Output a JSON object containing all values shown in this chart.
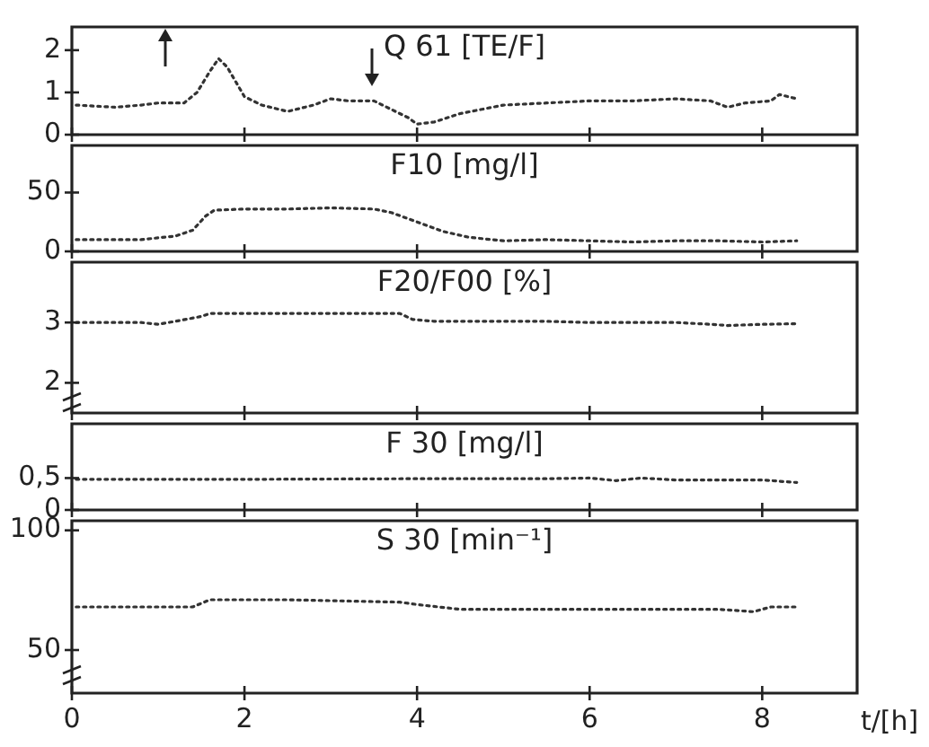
{
  "chart_data": [
    {
      "type": "line",
      "title": "Q 61 [TE/F]",
      "xlim": [
        0,
        9.1
      ],
      "xticks": [
        0,
        2,
        4,
        6,
        8
      ],
      "ylim": [
        0,
        2.55
      ],
      "yticks": [
        0,
        1,
        2
      ],
      "tick_labels": "y",
      "grid": false,
      "line_style": "dotted",
      "series": [
        {
          "color": "#333333",
          "x": [
            0.05,
            0.5,
            0.8,
            1.0,
            1.3,
            1.45,
            1.6,
            1.7,
            1.8,
            2.0,
            2.2,
            2.5,
            2.8,
            3.0,
            3.2,
            3.5,
            3.7,
            3.9,
            4.0,
            4.2,
            4.5,
            5.0,
            5.5,
            6.0,
            6.5,
            7.0,
            7.4,
            7.6,
            7.8,
            8.1,
            8.2,
            8.4
          ],
          "values": [
            0.7,
            0.65,
            0.7,
            0.75,
            0.75,
            1.0,
            1.5,
            1.8,
            1.6,
            0.9,
            0.7,
            0.55,
            0.7,
            0.85,
            0.8,
            0.8,
            0.6,
            0.4,
            0.25,
            0.3,
            0.5,
            0.7,
            0.75,
            0.8,
            0.8,
            0.85,
            0.8,
            0.65,
            0.75,
            0.8,
            0.95,
            0.85
          ]
        }
      ]
    },
    {
      "type": "line",
      "title": "F10 [mg/l]",
      "xlim": [
        0,
        9.1
      ],
      "xticks": [
        0,
        2,
        4,
        6,
        8
      ],
      "ylim": [
        0,
        90
      ],
      "yticks": [
        0,
        50
      ],
      "tick_labels": "y",
      "grid": false,
      "line_style": "dotted",
      "series": [
        {
          "color": "#333333",
          "x": [
            0.05,
            0.8,
            1.2,
            1.4,
            1.55,
            1.65,
            2.0,
            2.5,
            3.0,
            3.5,
            3.7,
            4.0,
            4.3,
            4.6,
            5.0,
            5.5,
            6.0,
            6.5,
            7.0,
            7.5,
            8.0,
            8.4
          ],
          "values": [
            10,
            10,
            13,
            18,
            30,
            35,
            36,
            36,
            37,
            36,
            33,
            25,
            17,
            12,
            9,
            10,
            9,
            8,
            9,
            9,
            8,
            9
          ]
        }
      ]
    },
    {
      "type": "line",
      "title": "F20/F00 [%]",
      "xlim": [
        0,
        9.1
      ],
      "xticks": [
        0,
        2,
        4,
        6,
        8
      ],
      "ylim": [
        1.5,
        4
      ],
      "yticks": [
        2,
        3
      ],
      "tick_labels": "y",
      "grid": false,
      "line_style": "dotted",
      "series": [
        {
          "color": "#333333",
          "x": [
            0.05,
            0.8,
            1.0,
            1.2,
            1.5,
            1.6,
            2.5,
            3.5,
            3.8,
            3.95,
            4.2,
            5.0,
            5.5,
            6.0,
            7.0,
            7.4,
            7.6,
            8.0,
            8.4
          ],
          "values": [
            3.0,
            3.0,
            2.97,
            3.02,
            3.1,
            3.15,
            3.15,
            3.15,
            3.15,
            3.05,
            3.02,
            3.02,
            3.02,
            3.0,
            3.0,
            2.97,
            2.95,
            2.97,
            2.98
          ]
        }
      ]
    },
    {
      "type": "line",
      "title": "F 30 [mg/l]",
      "xlim": [
        0,
        9.1
      ],
      "xticks": [
        0,
        2,
        4,
        6,
        8
      ],
      "ylim": [
        0,
        1.35
      ],
      "yticks": [
        0,
        {
          "value": 0.5,
          "label": "0,5"
        }
      ],
      "tick_labels": "y",
      "grid": false,
      "line_style": "dotted",
      "series": [
        {
          "color": "#333333",
          "x": [
            0.05,
            2.0,
            4.0,
            5.5,
            6.0,
            6.3,
            6.6,
            7.0,
            7.5,
            8.0,
            8.4
          ],
          "values": [
            0.48,
            0.48,
            0.49,
            0.49,
            0.5,
            0.46,
            0.5,
            0.47,
            0.47,
            0.47,
            0.43
          ]
        }
      ]
    },
    {
      "type": "line",
      "title": "S 30 [min⁻¹]",
      "xlabel": "t/[h]",
      "xlim": [
        0,
        9.1
      ],
      "xticks": [
        0,
        2,
        4,
        6,
        8
      ],
      "ylim": [
        32,
        104
      ],
      "yticks": [
        50,
        100
      ],
      "grid": false,
      "line_style": "dotted",
      "series": [
        {
          "color": "#333333",
          "x": [
            0.05,
            1.4,
            1.6,
            2.5,
            3.8,
            4.0,
            4.5,
            5.5,
            6.5,
            7.5,
            7.9,
            8.1,
            8.4
          ],
          "values": [
            68,
            68,
            71,
            71,
            70,
            69,
            67,
            67,
            67,
            67,
            66,
            68,
            68
          ]
        }
      ]
    }
  ]
}
